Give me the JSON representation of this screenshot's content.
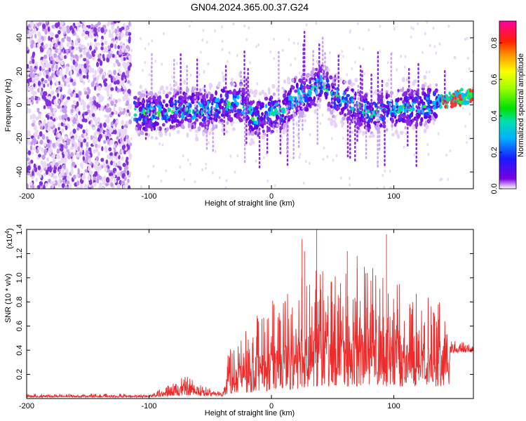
{
  "title": "GN04.2024.365.00.37.G24",
  "chart_data": [
    {
      "type": "heatmap",
      "xlabel": "Height of straight line (km)",
      "ylabel": "Frequency (Hz)",
      "xlim": [
        -200,
        165
      ],
      "ylim": [
        -50,
        50
      ],
      "x_ticks": [
        -200,
        -100,
        0,
        100
      ],
      "y_ticks": [
        -40,
        -20,
        0,
        20,
        40
      ],
      "colorbar": {
        "label": "Normalized spectral amplitude",
        "range": [
          0,
          0.92
        ],
        "ticks": [
          0.0,
          0.2,
          0.4,
          0.6,
          0.8
        ],
        "tick_labels": [
          "0.0",
          "0.2",
          "0.4",
          "0.6",
          "0.8"
        ]
      },
      "ridge": [
        {
          "x": -110,
          "y": -5
        },
        {
          "x": -90,
          "y": -5
        },
        {
          "x": -70,
          "y": -2
        },
        {
          "x": -55,
          "y": -4
        },
        {
          "x": -40,
          "y": 0
        },
        {
          "x": -25,
          "y": 2
        },
        {
          "x": -15,
          "y": -8
        },
        {
          "x": 0,
          "y": -5
        },
        {
          "x": 10,
          "y": -3
        },
        {
          "x": 20,
          "y": 5
        },
        {
          "x": 30,
          "y": 6
        },
        {
          "x": 40,
          "y": 14
        },
        {
          "x": 50,
          "y": 5
        },
        {
          "x": 60,
          "y": 3
        },
        {
          "x": 80,
          "y": -5
        },
        {
          "x": 100,
          "y": -2
        },
        {
          "x": 120,
          "y": -1
        },
        {
          "x": 140,
          "y": 2
        },
        {
          "x": 150,
          "y": 4
        },
        {
          "x": 165,
          "y": 6
        }
      ]
    },
    {
      "type": "line",
      "xlabel": "Height of straight line (km)",
      "ylabel": "SNR (10 * v/v)",
      "y_scale_label": "(x10",
      "y_scale_exponent": "4",
      "y_scale_suffix": ")",
      "xlim": [
        -200,
        165
      ],
      "ylim": [
        0,
        1.4
      ],
      "x_ticks": [
        -200,
        -100,
        0,
        100
      ],
      "y_ticks": [
        0.2,
        0.4,
        0.6,
        0.8,
        1.0,
        1.2,
        1.4
      ],
      "y_tick_labels": [
        "0.2",
        "0.4",
        "0.6",
        "0.8",
        "1.0",
        "1.2",
        "1.4"
      ],
      "series": [
        {
          "color": "#ee2a2a",
          "envelope": [
            {
              "x": -200,
              "lo": 0.01,
              "hi": 0.04
            },
            {
              "x": -100,
              "lo": 0.01,
              "hi": 0.04
            },
            {
              "x": -80,
              "lo": 0.02,
              "hi": 0.13
            },
            {
              "x": -68,
              "lo": 0.03,
              "hi": 0.24
            },
            {
              "x": -60,
              "lo": 0.02,
              "hi": 0.12
            },
            {
              "x": -40,
              "lo": 0.02,
              "hi": 0.06
            },
            {
              "x": -35,
              "lo": 0.04,
              "hi": 0.48
            },
            {
              "x": -20,
              "lo": 0.05,
              "hi": 0.62
            },
            {
              "x": 0,
              "lo": 0.06,
              "hi": 0.8
            },
            {
              "x": 20,
              "lo": 0.08,
              "hi": 1.02
            },
            {
              "x": 40,
              "lo": 0.1,
              "hi": 1.08
            },
            {
              "x": 60,
              "lo": 0.1,
              "hi": 1.04
            },
            {
              "x": 80,
              "lo": 0.1,
              "hi": 1.12
            },
            {
              "x": 100,
              "lo": 0.1,
              "hi": 0.98
            },
            {
              "x": 120,
              "lo": 0.1,
              "hi": 0.86
            },
            {
              "x": 145,
              "lo": 0.1,
              "hi": 0.78
            },
            {
              "x": 146,
              "lo": 0.38,
              "hi": 0.48
            },
            {
              "x": 165,
              "lo": 0.38,
              "hi": 0.46
            }
          ],
          "spikes": [
            {
              "x": 25,
              "y": 1.32
            },
            {
              "x": 37,
              "y": 1.4
            },
            {
              "x": 62,
              "y": 1.22
            },
            {
              "x": 94,
              "y": 1.36
            },
            {
              "x": 27,
              "y": 1.22
            },
            {
              "x": 70,
              "y": 1.18
            }
          ]
        }
      ]
    }
  ]
}
